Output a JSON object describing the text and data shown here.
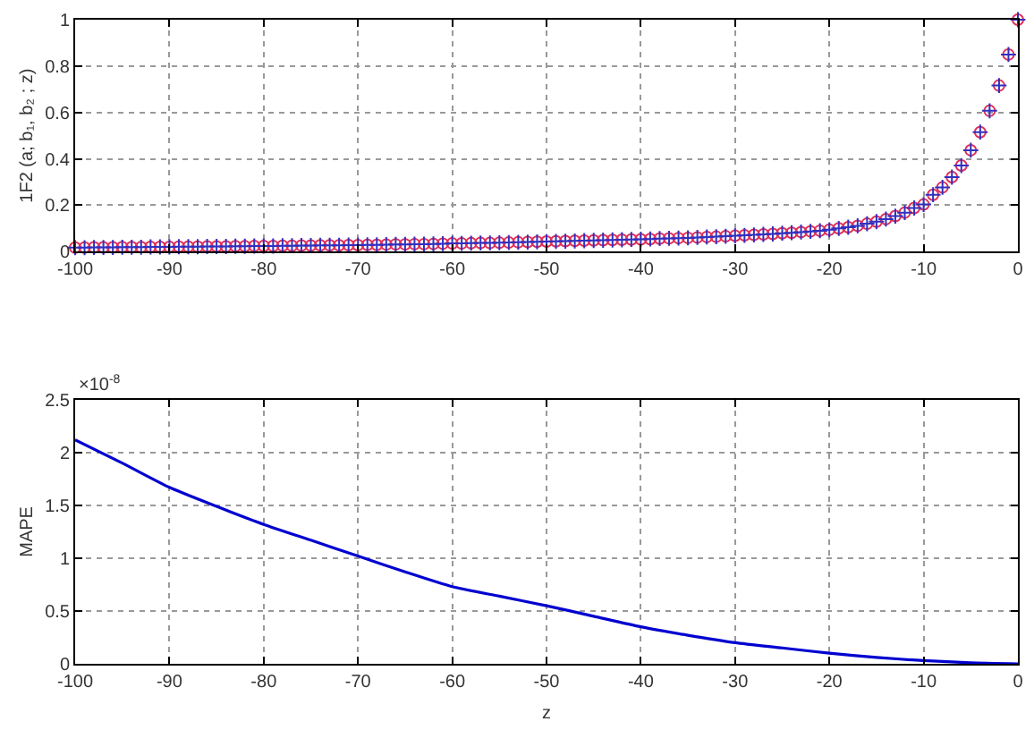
{
  "chart_data": [
    {
      "type": "scatter",
      "ylabel": "1F2 (a; b₁, b₂ ; z)",
      "xlim": [
        -100,
        0
      ],
      "xticks": [
        -100,
        -90,
        -80,
        -70,
        -60,
        -50,
        -40,
        -30,
        -20,
        -10,
        0
      ],
      "ylim": [
        0,
        1
      ],
      "yticks": [
        0,
        0.2,
        0.4,
        0.6,
        0.8,
        1
      ],
      "grid": true,
      "x": [
        -100,
        -99,
        -98,
        -97,
        -96,
        -95,
        -94,
        -93,
        -92,
        -91,
        -90,
        -89,
        -88,
        -87,
        -86,
        -85,
        -84,
        -83,
        -82,
        -81,
        -80,
        -79,
        -78,
        -77,
        -76,
        -75,
        -74,
        -73,
        -72,
        -71,
        -70,
        -69,
        -68,
        -67,
        -66,
        -65,
        -64,
        -63,
        -62,
        -61,
        -60,
        -59,
        -58,
        -57,
        -56,
        -55,
        -54,
        -53,
        -52,
        -51,
        -50,
        -49,
        -48,
        -47,
        -46,
        -45,
        -44,
        -43,
        -42,
        -41,
        -40,
        -39,
        -38,
        -37,
        -36,
        -35,
        -34,
        -33,
        -32,
        -31,
        -30,
        -29,
        -28,
        -27,
        -26,
        -25,
        -24,
        -23,
        -22,
        -21,
        -20,
        -19,
        -18,
        -17,
        -16,
        -15,
        -14,
        -13,
        -12,
        -11,
        -10,
        -9,
        -8,
        -7,
        -6,
        -5,
        -4,
        -3,
        -2,
        -1,
        0
      ],
      "series": [
        {
          "color": "#e0305a",
          "marker": "circle",
          "values": [
            0.017,
            0.017,
            0.018,
            0.018,
            0.018,
            0.019,
            0.019,
            0.019,
            0.02,
            0.02,
            0.02,
            0.021,
            0.021,
            0.021,
            0.022,
            0.022,
            0.022,
            0.023,
            0.023,
            0.024,
            0.024,
            0.024,
            0.025,
            0.025,
            0.026,
            0.026,
            0.027,
            0.027,
            0.027,
            0.028,
            0.028,
            0.029,
            0.029,
            0.03,
            0.031,
            0.031,
            0.032,
            0.032,
            0.033,
            0.034,
            0.035,
            0.035,
            0.036,
            0.037,
            0.037,
            0.038,
            0.039,
            0.04,
            0.041,
            0.042,
            0.043,
            0.044,
            0.045,
            0.046,
            0.047,
            0.048,
            0.049,
            0.05,
            0.051,
            0.052,
            0.053,
            0.054,
            0.056,
            0.057,
            0.058,
            0.059,
            0.061,
            0.063,
            0.064,
            0.066,
            0.068,
            0.07,
            0.072,
            0.074,
            0.076,
            0.079,
            0.081,
            0.084,
            0.087,
            0.09,
            0.094,
            0.1,
            0.105,
            0.111,
            0.12,
            0.129,
            0.14,
            0.153,
            0.168,
            0.188,
            0.203,
            0.245,
            0.277,
            0.321,
            0.371,
            0.437,
            0.515,
            0.607,
            0.716,
            0.85,
            1.0
          ]
        },
        {
          "color": "#3030c0",
          "marker": "cross",
          "values": [
            0.017,
            0.017,
            0.018,
            0.018,
            0.018,
            0.019,
            0.019,
            0.019,
            0.02,
            0.02,
            0.02,
            0.021,
            0.021,
            0.021,
            0.022,
            0.022,
            0.022,
            0.023,
            0.023,
            0.024,
            0.024,
            0.024,
            0.025,
            0.025,
            0.026,
            0.026,
            0.027,
            0.027,
            0.027,
            0.028,
            0.028,
            0.029,
            0.029,
            0.03,
            0.031,
            0.031,
            0.032,
            0.032,
            0.033,
            0.034,
            0.035,
            0.035,
            0.036,
            0.037,
            0.037,
            0.038,
            0.039,
            0.04,
            0.041,
            0.042,
            0.043,
            0.044,
            0.045,
            0.046,
            0.047,
            0.048,
            0.049,
            0.05,
            0.051,
            0.052,
            0.053,
            0.054,
            0.056,
            0.057,
            0.058,
            0.059,
            0.061,
            0.063,
            0.064,
            0.066,
            0.068,
            0.07,
            0.072,
            0.074,
            0.076,
            0.079,
            0.081,
            0.084,
            0.087,
            0.09,
            0.094,
            0.1,
            0.105,
            0.111,
            0.12,
            0.129,
            0.14,
            0.153,
            0.168,
            0.188,
            0.203,
            0.245,
            0.277,
            0.321,
            0.371,
            0.437,
            0.515,
            0.607,
            0.716,
            0.85,
            1.0
          ]
        }
      ]
    },
    {
      "type": "line",
      "xlabel": "z",
      "ylabel": "MAPE",
      "annotations": [
        "×10$^{-8}$"
      ],
      "xlim": [
        -100,
        0
      ],
      "xticks": [
        -100,
        -90,
        -80,
        -70,
        -60,
        -50,
        -40,
        -30,
        -20,
        -10,
        0
      ],
      "ylim": [
        0,
        2.5
      ],
      "yticks": [
        0,
        0.5,
        1,
        1.5,
        2,
        2.5
      ],
      "grid": true,
      "marker": "none",
      "line_style": "solid",
      "x": [
        -100,
        -95,
        -90,
        -85,
        -80,
        -75,
        -70,
        -65,
        -60,
        -55,
        -50,
        -45,
        -40,
        -35,
        -30,
        -25,
        -20,
        -15,
        -10,
        -5,
        0
      ],
      "series": [
        {
          "color": "#0000d0",
          "values": [
            2.12,
            1.9,
            1.67,
            1.49,
            1.32,
            1.17,
            1.02,
            0.87,
            0.73,
            0.64,
            0.55,
            0.45,
            0.35,
            0.27,
            0.2,
            0.15,
            0.1,
            0.06,
            0.03,
            0.01,
            0.0
          ]
        }
      ]
    }
  ]
}
